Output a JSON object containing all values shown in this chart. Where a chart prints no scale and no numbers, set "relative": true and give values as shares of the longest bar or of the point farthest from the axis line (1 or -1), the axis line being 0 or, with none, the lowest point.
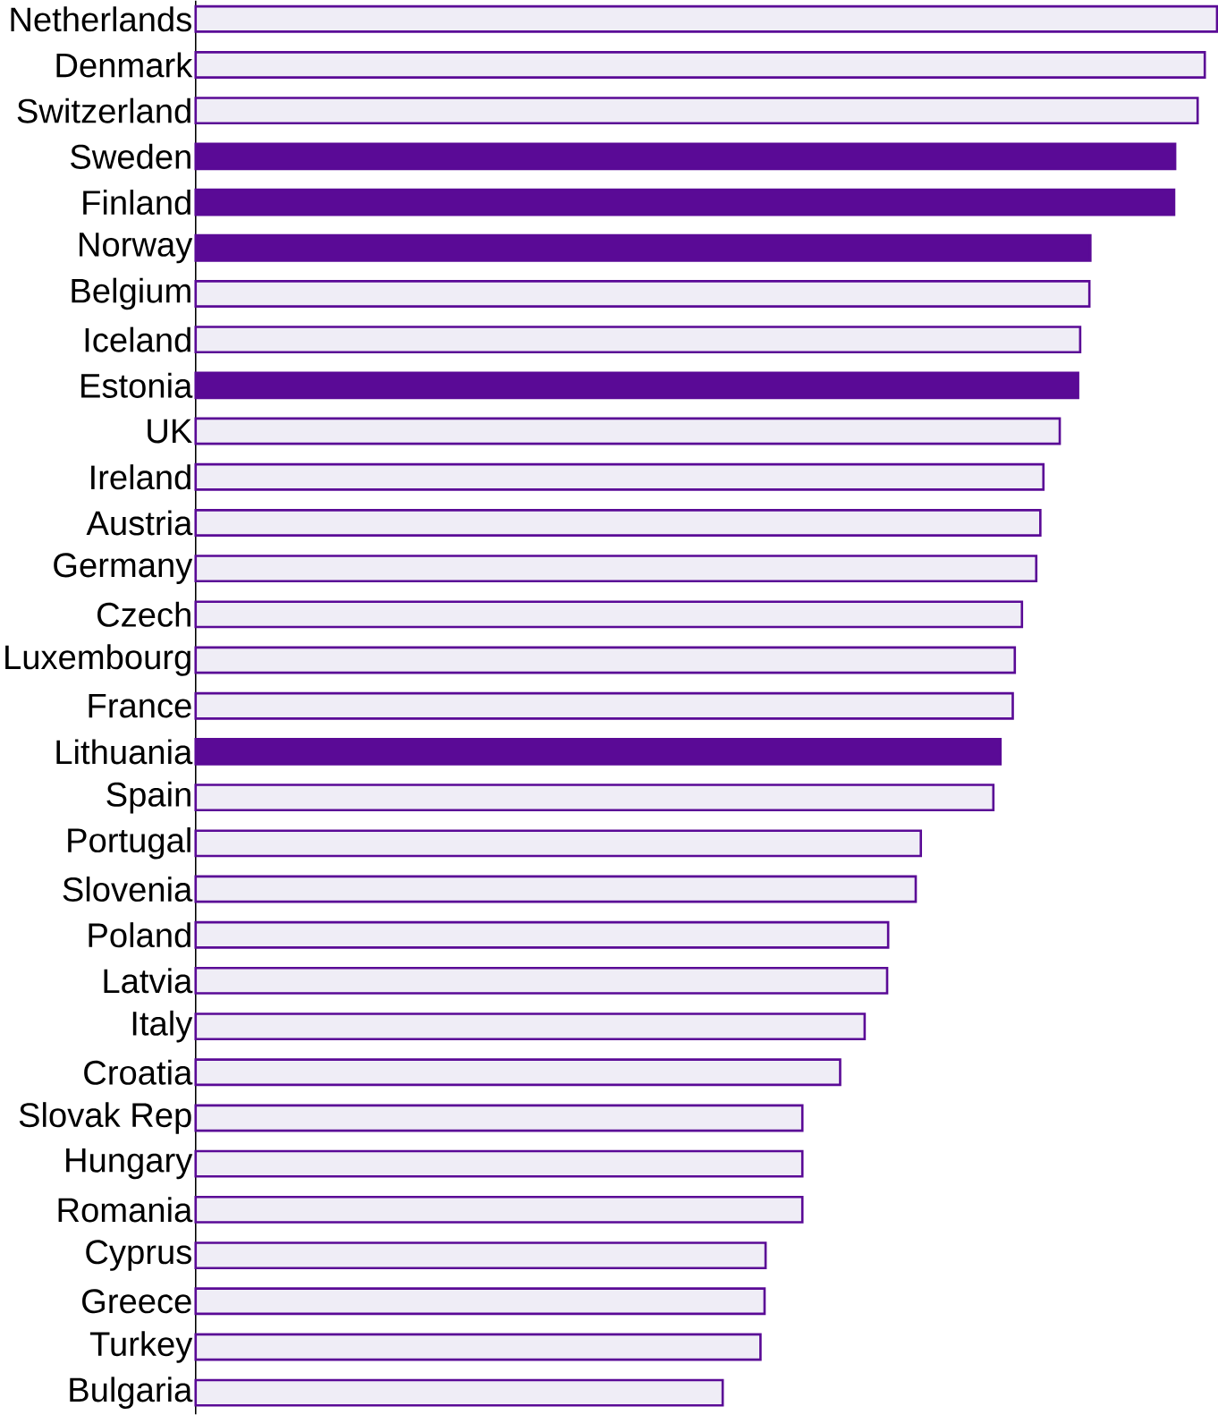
{
  "chart_data": {
    "type": "bar",
    "orientation": "horizontal",
    "relative": true,
    "color": "#5a0a96",
    "categories": [
      "Netherlands",
      "Denmark",
      "Switzerland",
      "Sweden",
      "Finland",
      "Norway",
      "Belgium",
      "Iceland",
      "Estonia",
      "UK",
      "Ireland",
      "Austria",
      "Germany",
      "Czech",
      "Luxembourg",
      "France",
      "Lithuania",
      "Spain",
      "Portugal",
      "Slovenia",
      "Poland",
      "Latvia",
      "Italy",
      "Croatia",
      "Slovak Rep",
      "Hungary",
      "Romania",
      "Cyprus",
      "Greece",
      "Turkey",
      "Bulgaria"
    ],
    "values": [
      1,
      0.988,
      0.981,
      0.959,
      0.958,
      0.876,
      0.875,
      0.866,
      0.864,
      0.846,
      0.83,
      0.827,
      0.823,
      0.809,
      0.802,
      0.8,
      0.788,
      0.781,
      0.71,
      0.705,
      0.678,
      0.677,
      0.655,
      0.631,
      0.594,
      0.594,
      0.594,
      0.558,
      0.557,
      0.553,
      0.516
    ],
    "colors": [
      "#efedf6",
      "#efedf6",
      "#efedf6",
      "#5a0a96",
      "#5a0a96",
      "#5a0a96",
      "#efedf6",
      "#efedf6",
      "#5a0a96",
      "#efedf6",
      "#efedf6",
      "#efedf6",
      "#efedf6",
      "#efedf6",
      "#efedf6",
      "#efedf6",
      "#5a0a96",
      "#efedf6",
      "#efedf6",
      "#efedf6",
      "#efedf6",
      "#efedf6",
      "#efedf6",
      "#efedf6",
      "#efedf6",
      "#efedf6",
      "#efedf6",
      "#efedf6",
      "#efedf6",
      "#efedf6",
      "#efedf6"
    ]
  }
}
